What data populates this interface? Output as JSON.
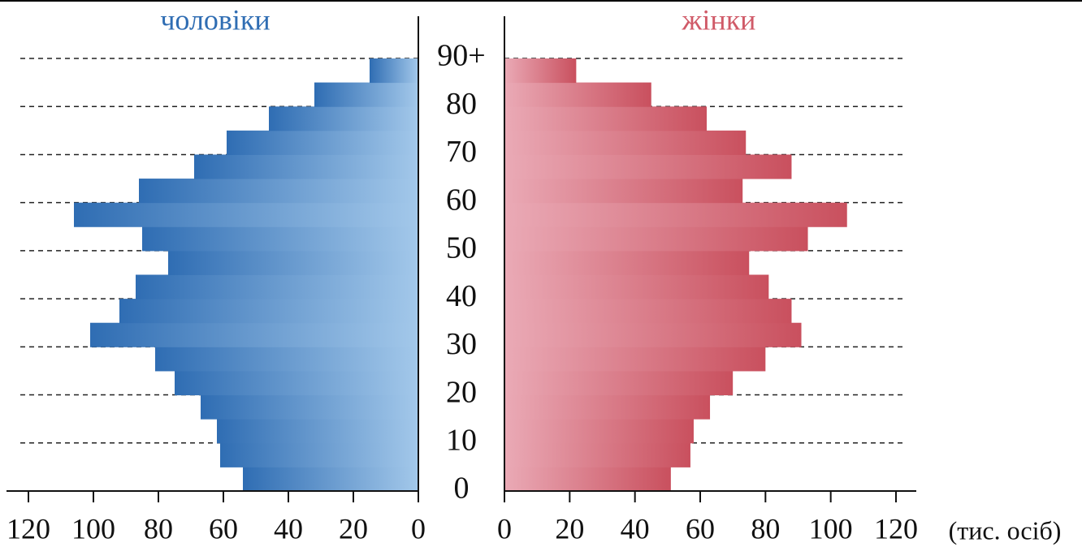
{
  "chart_data": {
    "type": "pyramid",
    "age_labels": [
      "0",
      "10",
      "20",
      "30",
      "40",
      "50",
      "60",
      "70",
      "80",
      "90+"
    ],
    "series": [
      {
        "name": "чоловіки",
        "color": "#2f6db3",
        "values": [
          54,
          61,
          62,
          67,
          75,
          81,
          101,
          92,
          87,
          77,
          85,
          106,
          86,
          69,
          59,
          46,
          32,
          15
        ]
      },
      {
        "name": "жінки",
        "color": "#c9505e",
        "values": [
          51,
          57,
          58,
          63,
          70,
          80,
          91,
          88,
          81,
          75,
          93,
          105,
          73,
          88,
          74,
          62,
          45,
          22
        ]
      }
    ],
    "xlim": [
      0,
      120
    ],
    "xticks": [
      0,
      20,
      40,
      60,
      80,
      100,
      120
    ],
    "unit_label": "(тис. осіб)"
  }
}
